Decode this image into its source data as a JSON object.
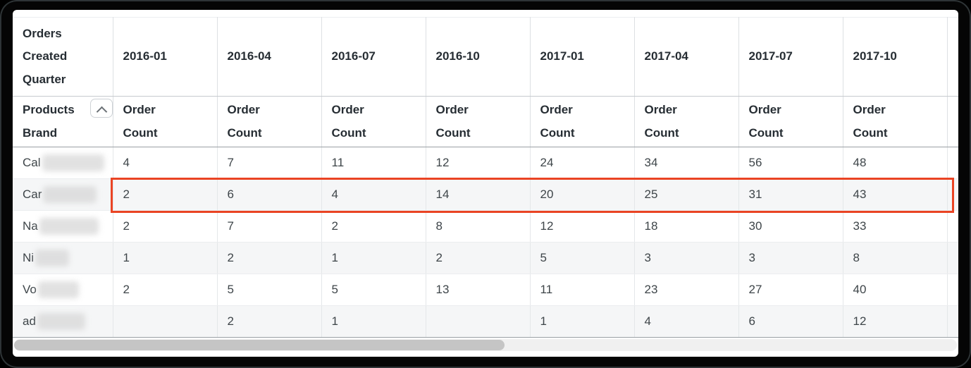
{
  "window": {
    "frame_color": "#000000",
    "content_bg": "#ffffff"
  },
  "table": {
    "corner_header": "Orders Created Quarter",
    "row_dimension": {
      "label": "Products Brand",
      "label_lines": [
        "Products",
        "Brand"
      ],
      "collapse_icon": "chevron-up"
    },
    "measure_label": "Order Count",
    "quarters": [
      "2016-01",
      "2016-04",
      "2016-07",
      "2016-10",
      "2017-01",
      "2017-04",
      "2017-07",
      "2017-10"
    ],
    "rows": [
      {
        "brand_prefix": "Cal",
        "redacted": true,
        "redact_width": 88,
        "highlighted": false,
        "values": [
          "4",
          "7",
          "11",
          "12",
          "24",
          "34",
          "56",
          "48"
        ]
      },
      {
        "brand_prefix": "Car",
        "redacted": true,
        "redact_width": 76,
        "highlighted": true,
        "values": [
          "2",
          "6",
          "4",
          "14",
          "20",
          "25",
          "31",
          "43"
        ]
      },
      {
        "brand_prefix": "Na",
        "redacted": true,
        "redact_width": 84,
        "highlighted": false,
        "values": [
          "2",
          "7",
          "2",
          "8",
          "12",
          "18",
          "30",
          "33"
        ]
      },
      {
        "brand_prefix": "Ni",
        "redacted": true,
        "redact_width": 48,
        "highlighted": false,
        "values": [
          "1",
          "2",
          "1",
          "2",
          "5",
          "3",
          "3",
          "8"
        ]
      },
      {
        "brand_prefix": "Vo",
        "redacted": true,
        "redact_width": 58,
        "highlighted": false,
        "values": [
          "2",
          "5",
          "5",
          "13",
          "11",
          "23",
          "27",
          "40"
        ]
      },
      {
        "brand_prefix": "ad",
        "redacted": true,
        "redact_width": 68,
        "highlighted": false,
        "values": [
          "",
          "2",
          "1",
          "",
          "1",
          "4",
          "6",
          "12"
        ]
      }
    ],
    "highlight": {
      "row_brand_prefix": "Car",
      "color": "#ea4424"
    },
    "colors": {
      "header_text": "#262d33",
      "body_text": "#3e4549",
      "gridline": "#dde0e3",
      "stripe": "#f5f6f7",
      "heavy_divider": "#9aa0a5"
    }
  },
  "scrollbar": {
    "orientation": "horizontal",
    "thumb_percent": 52
  }
}
